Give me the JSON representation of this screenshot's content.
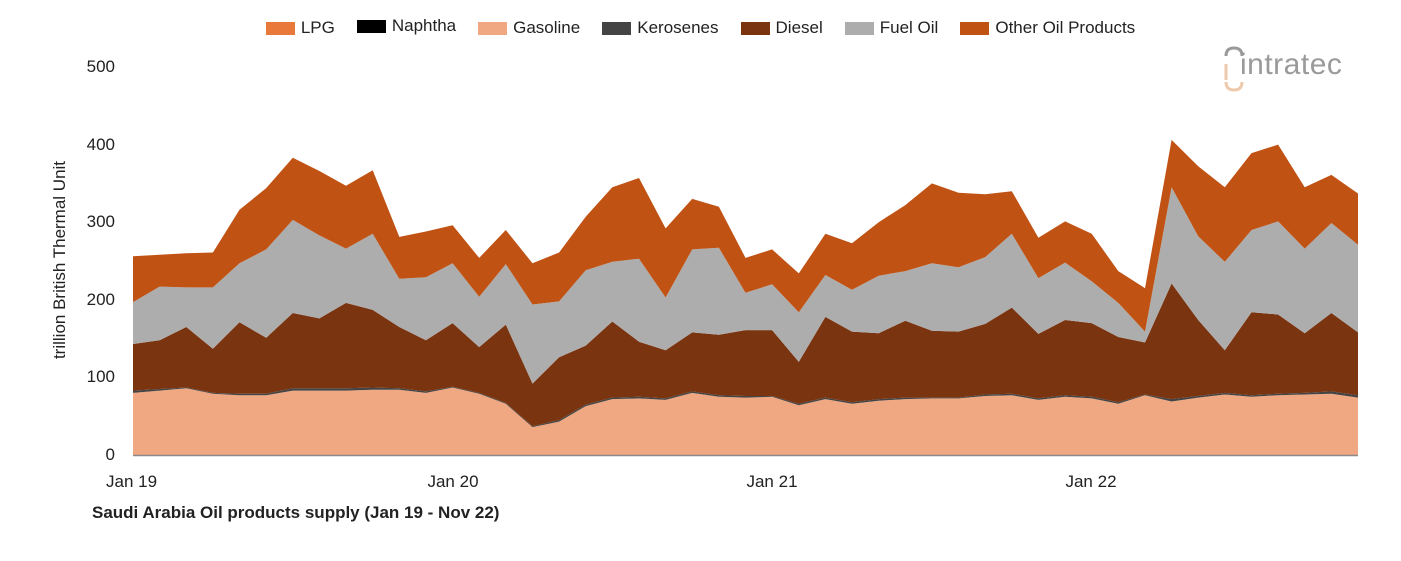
{
  "legend": {
    "items": [
      {
        "label": "LPG",
        "color": "#E8793A"
      },
      {
        "label": "Naphtha",
        "color": "#000000"
      },
      {
        "label": "Gasoline",
        "color": "#EFA882"
      },
      {
        "label": "Kerosenes",
        "color": "#444444"
      },
      {
        "label": "Diesel",
        "color": "#7B3410"
      },
      {
        "label": "Fuel Oil",
        "color": "#ADADAD"
      },
      {
        "label": "Other Oil Products",
        "color": "#C05214"
      }
    ]
  },
  "axis": {
    "ylabel": "trillion British Thermal Unit",
    "yticks": [
      "500",
      "400",
      "300",
      "200",
      "100",
      "0"
    ],
    "xticks": [
      "Jan 19",
      "Jan 20",
      "Jan 21",
      "Jan 22"
    ]
  },
  "caption": "Saudi Arabia Oil products supply (Jan 19 - Nov 22)",
  "logo": {
    "text": "intratec"
  },
  "chart_data": {
    "type": "area",
    "stacked": true,
    "title": "Saudi Arabia Oil products supply (Jan 19 - Nov 22)",
    "xlabel": "",
    "ylabel": "trillion British Thermal Unit",
    "ylim": [
      0,
      500
    ],
    "yticks": [
      0,
      100,
      200,
      300,
      400,
      500
    ],
    "legend_position": "top",
    "grid": false,
    "x": [
      "Jan 19",
      "Feb 19",
      "Mar 19",
      "Apr 19",
      "May 19",
      "Jun 19",
      "Jul 19",
      "Aug 19",
      "Sep 19",
      "Oct 19",
      "Nov 19",
      "Dec 19",
      "Jan 20",
      "Feb 20",
      "Mar 20",
      "Apr 20",
      "May 20",
      "Jun 20",
      "Jul 20",
      "Aug 20",
      "Sep 20",
      "Oct 20",
      "Nov 20",
      "Dec 20",
      "Jan 21",
      "Feb 21",
      "Mar 21",
      "Apr 21",
      "May 21",
      "Jun 21",
      "Jul 21",
      "Aug 21",
      "Sep 21",
      "Oct 21",
      "Nov 21",
      "Dec 21",
      "Jan 22",
      "Feb 22",
      "Mar 22",
      "Apr 22",
      "May 22",
      "Jun 22",
      "Jul 22",
      "Aug 22",
      "Sep 22",
      "Oct 22",
      "Nov 22"
    ],
    "series": [
      {
        "name": "LPG",
        "values": [
          0,
          0,
          0,
          0,
          0,
          0,
          0,
          0,
          0,
          0,
          0,
          0,
          0,
          0,
          0,
          0,
          0,
          0,
          0,
          0,
          0,
          0,
          0,
          0,
          0,
          0,
          0,
          0,
          0,
          0,
          0,
          0,
          0,
          0,
          0,
          0,
          0,
          0,
          0,
          0,
          0,
          0,
          0,
          0,
          0,
          0,
          0
        ]
      },
      {
        "name": "Naphtha",
        "values": [
          0,
          0,
          0,
          0,
          0,
          0,
          0,
          0,
          0,
          0,
          0,
          0,
          0,
          0,
          0,
          0,
          0,
          0,
          0,
          0,
          0,
          0,
          0,
          0,
          0,
          0,
          0,
          0,
          0,
          0,
          0,
          0,
          0,
          0,
          0,
          0,
          0,
          0,
          0,
          0,
          0,
          0,
          0,
          0,
          0,
          0,
          0
        ]
      },
      {
        "name": "Gasoline",
        "values": [
          80,
          83,
          86,
          79,
          77,
          77,
          83,
          83,
          83,
          84,
          84,
          80,
          87,
          79,
          66,
          36,
          43,
          63,
          72,
          73,
          71,
          80,
          75,
          74,
          75,
          64,
          72,
          66,
          70,
          72,
          73,
          73,
          76,
          77,
          71,
          75,
          73,
          66,
          77,
          69,
          74,
          78,
          75,
          77,
          78,
          79,
          74
        ]
      },
      {
        "name": "Kerosenes",
        "values": [
          3,
          2,
          1,
          1,
          2,
          2,
          3,
          3,
          3,
          3,
          2,
          2,
          1,
          1,
          1,
          1,
          2,
          2,
          2,
          2,
          2,
          2,
          2,
          2,
          1,
          2,
          2,
          2,
          2,
          2,
          1,
          1,
          2,
          2,
          2,
          2,
          2,
          2,
          1,
          3,
          2,
          2,
          2,
          2,
          2,
          3,
          3
        ]
      },
      {
        "name": "Diesel",
        "values": [
          60,
          63,
          78,
          57,
          92,
          72,
          97,
          90,
          110,
          100,
          79,
          66,
          82,
          59,
          101,
          55,
          81,
          76,
          98,
          71,
          62,
          76,
          78,
          85,
          85,
          54,
          104,
          91,
          85,
          99,
          86,
          85,
          91,
          111,
          83,
          97,
          95,
          84,
          67,
          149,
          98,
          55,
          107,
          102,
          77,
          101,
          81
        ]
      },
      {
        "name": "Fuel Oil",
        "values": [
          54,
          69,
          51,
          79,
          76,
          114,
          120,
          107,
          70,
          98,
          62,
          81,
          77,
          65,
          78,
          102,
          72,
          97,
          77,
          107,
          68,
          107,
          112,
          48,
          59,
          64,
          54,
          54,
          74,
          64,
          87,
          83,
          86,
          95,
          72,
          74,
          54,
          44,
          14,
          124,
          108,
          114,
          106,
          120,
          109,
          116,
          113
        ]
      },
      {
        "name": "Other Oil Products",
        "values": [
          59,
          41,
          44,
          45,
          69,
          79,
          80,
          83,
          81,
          82,
          54,
          59,
          49,
          50,
          44,
          53,
          63,
          69,
          96,
          104,
          89,
          65,
          53,
          45,
          45,
          50,
          53,
          60,
          69,
          85,
          103,
          96,
          81,
          55,
          52,
          53,
          61,
          41,
          56,
          61,
          90,
          96,
          99,
          99,
          79,
          62,
          66
        ]
      }
    ],
    "totals": [
      256,
      258,
      260,
      261,
      316,
      344,
      383,
      366,
      347,
      367,
      281,
      288,
      296,
      254,
      290,
      247,
      261,
      307,
      345,
      357,
      292,
      330,
      320,
      254,
      265,
      234,
      285,
      273,
      300,
      322,
      350,
      338,
      336,
      340,
      280,
      301,
      285,
      237,
      215,
      406,
      372,
      345,
      389,
      400,
      345,
      361,
      337
    ]
  }
}
